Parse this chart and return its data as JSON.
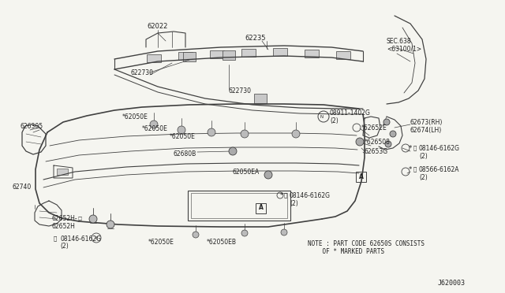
{
  "bg_color": "#f5f5f0",
  "line_color": "#404040",
  "text_color": "#222222",
  "fig_width": 6.4,
  "fig_height": 3.72,
  "dpi": 100,
  "diagram_id": "J620003",
  "note_line1": "NOTE : PART CODE 62650S CONSISTS",
  "note_line2": "    OF * MARKED PARTS"
}
